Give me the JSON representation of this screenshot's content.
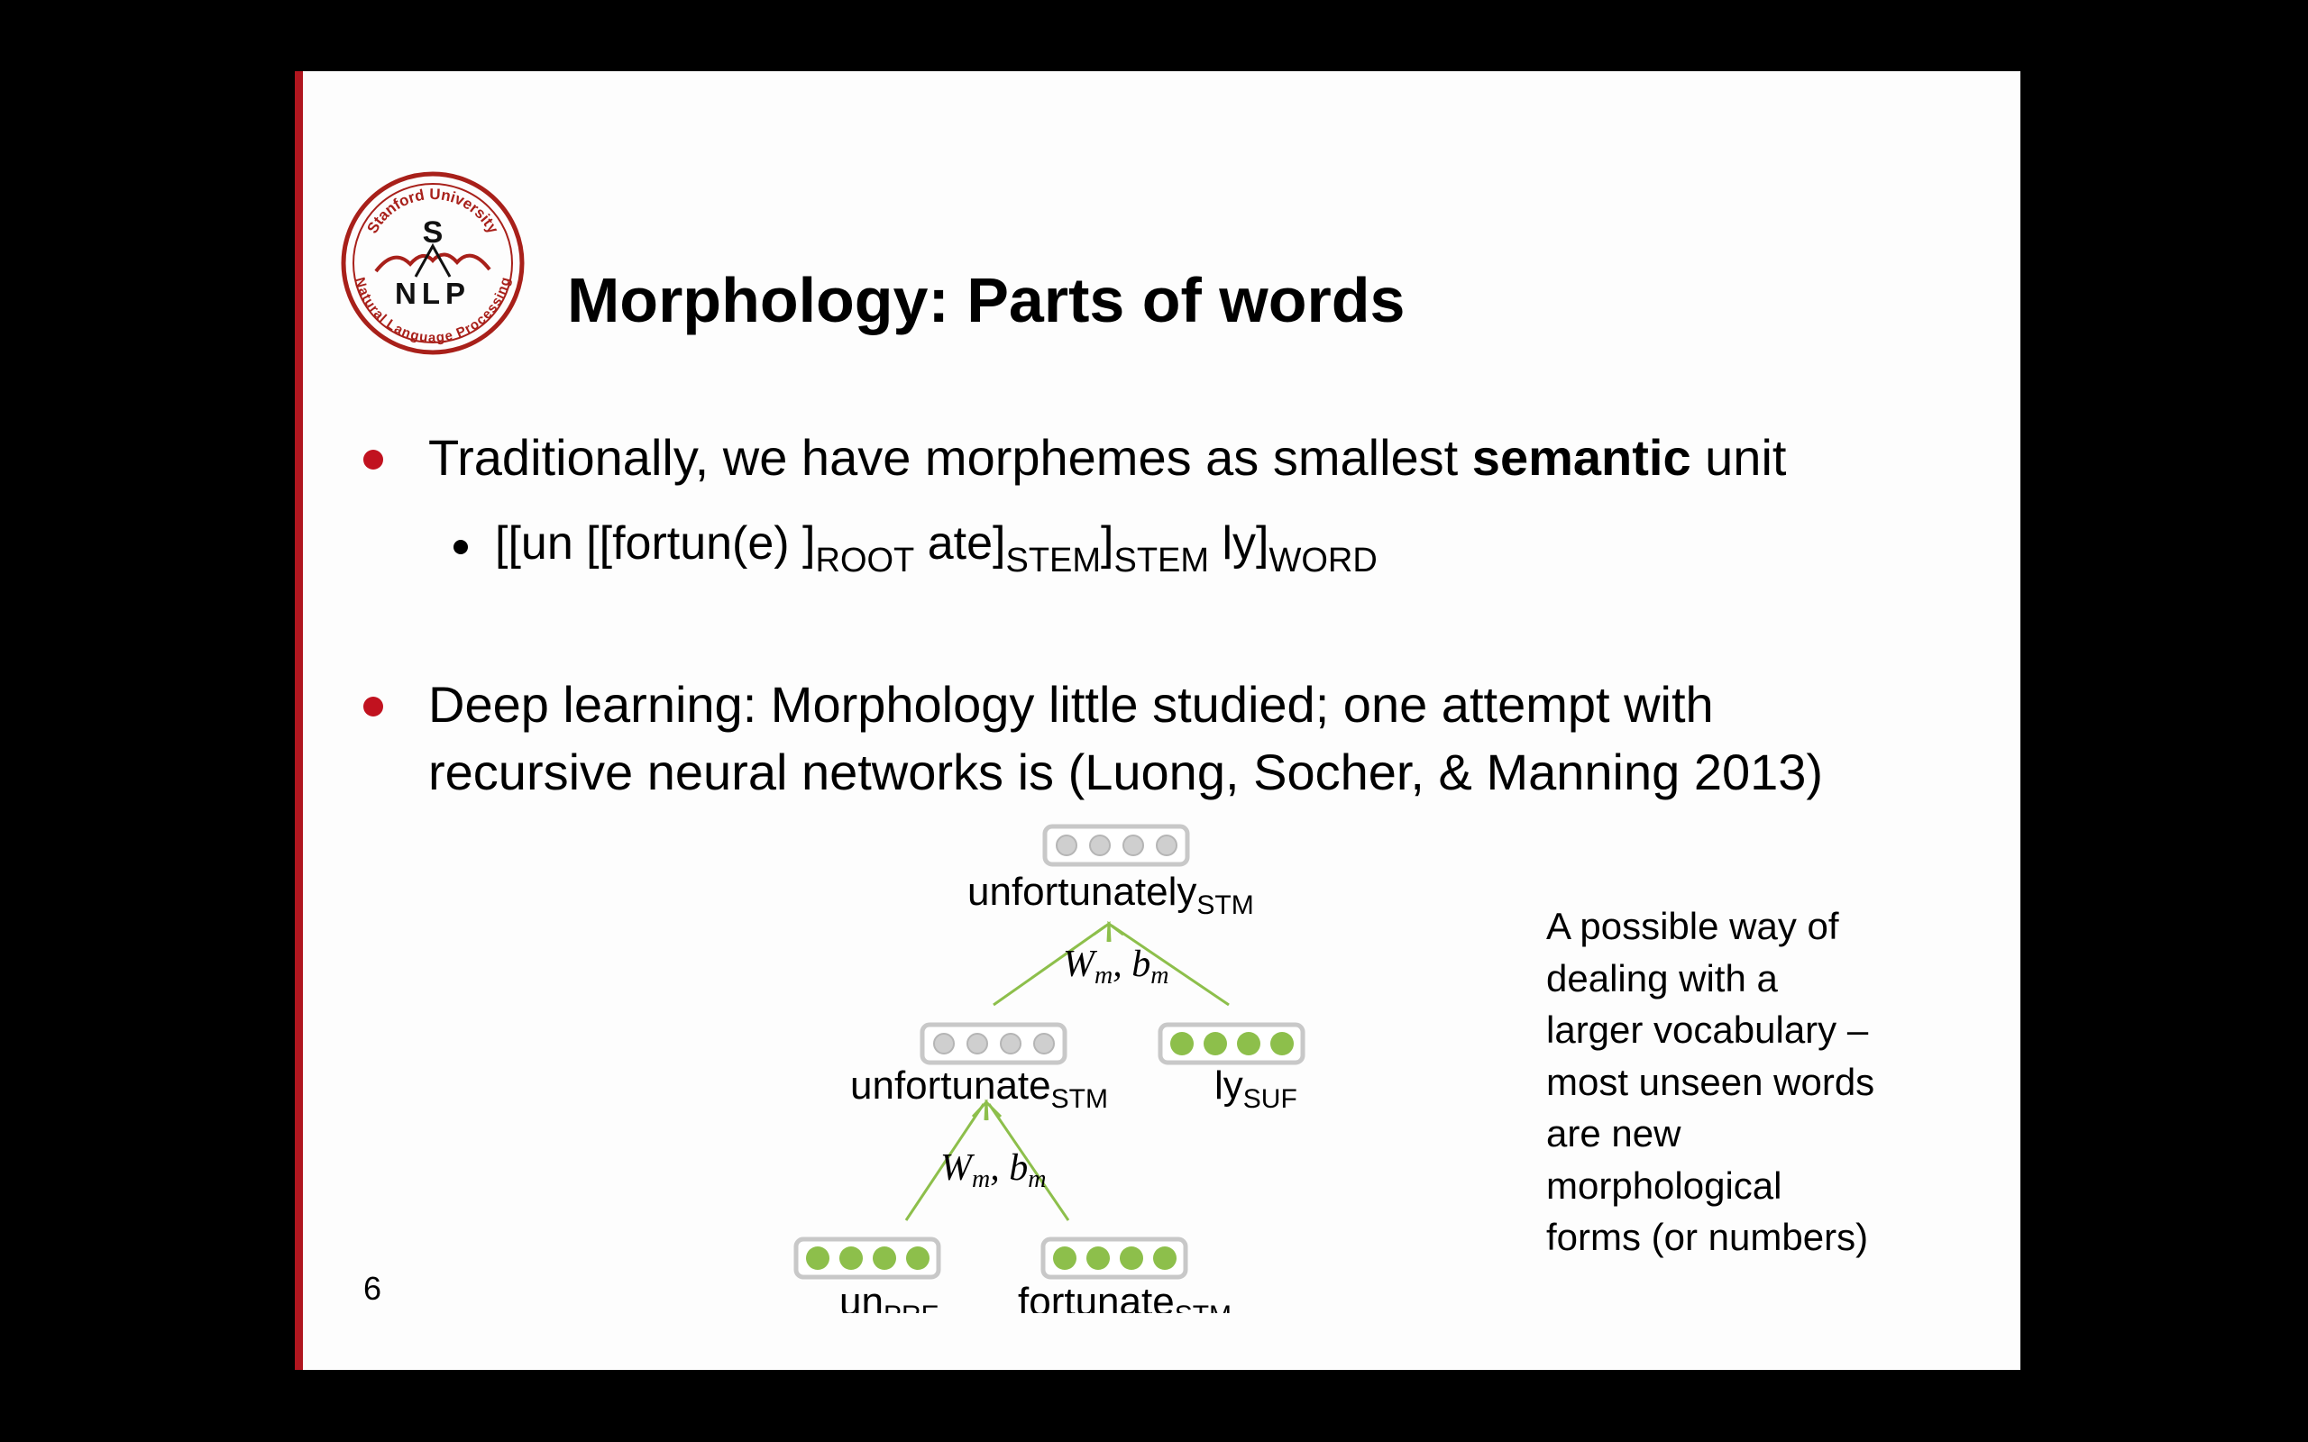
{
  "slide": {
    "logo": {
      "letter_top": "S",
      "letters": "NLP",
      "text_top": "Stanford University",
      "text_bottom": "Natural Language Processing",
      "color": "#a8201a"
    },
    "title": "Morphology: Parts of words",
    "bullet1": {
      "text_before": "Traditionally, we have morphemes as smallest ",
      "text_bold": "semantic",
      "text_after": " unit"
    },
    "sub_bullet": {
      "seg1": "[[un [[fortun(e) ]",
      "sub1": "ROOT",
      "seg2": " ate]",
      "sub2": "STEM",
      "seg3": "]",
      "sub3": "STEM",
      "seg4": " ly]",
      "sub4": "WORD"
    },
    "bullet2": {
      "line1": "Deep learning: Morphology little studied; one attempt with",
      "line2": "recursive neural networks is (Luong, Socher, & Manning 2013)"
    },
    "diagram": {
      "top_word": "unfortunately",
      "top_sub": "STM",
      "mid_left_word": "unfortunate",
      "mid_left_sub": "STM",
      "mid_right_word": "ly",
      "mid_right_sub": "SUF",
      "bottom_left_word": "un",
      "bottom_left_sub": "PRE",
      "bottom_right_word": "fortunate",
      "bottom_right_sub": "STM",
      "weight_label_upper_W": "W",
      "weight_label_upper_wsub": "m",
      "weight_label_upper_b": ", b",
      "weight_label_upper_bsub": "m",
      "weight_label_lower_W": "W",
      "weight_label_lower_wsub": "m",
      "weight_label_lower_b": ", b",
      "weight_label_lower_bsub": "m",
      "green_color": "#8dbf4b",
      "grey_color": "#cfcfcf"
    },
    "side_note": {
      "lines": [
        "A possible way of",
        "dealing with a",
        "larger vocabulary –",
        "most unseen words",
        "are new",
        "morphological",
        "forms (or numbers)"
      ]
    },
    "page_number": "6",
    "accent_color": "#b0161f"
  }
}
